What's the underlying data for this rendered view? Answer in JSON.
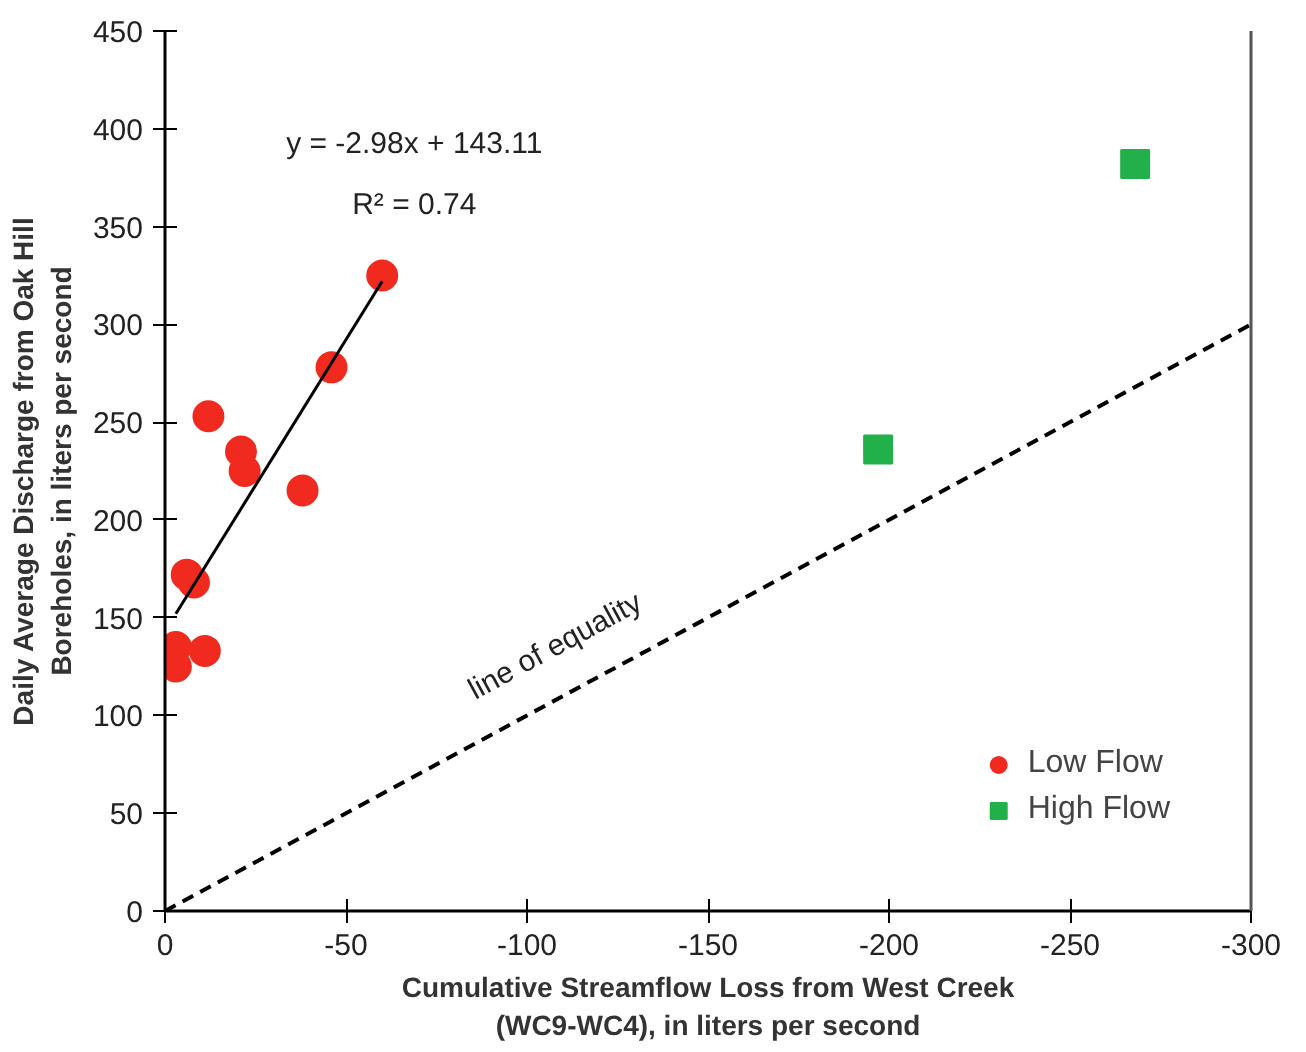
{
  "chart_data": {
    "type": "scatter",
    "xlabel": "Cumulative Streamflow Loss from West Creek\n(WC9-WC4), in liters per second",
    "ylabel": "Daily Average Discharge from Oak Hill\nBoreholes, in liters per second",
    "xlim": [
      0,
      -300
    ],
    "xticks": [
      0,
      -50,
      -100,
      -150,
      -200,
      -250,
      -300
    ],
    "ylim": [
      0,
      450
    ],
    "yticks": [
      0,
      50,
      100,
      150,
      200,
      250,
      300,
      350,
      400,
      450
    ],
    "grid": false,
    "legend": "bottom right",
    "series": [
      {
        "name": "Low Flow",
        "marker": "circle",
        "color": "#f02a1e",
        "x": [
          -60,
          -46,
          -12,
          -21,
          -22,
          -38,
          -6,
          -8,
          -3,
          -11,
          -3
        ],
        "values": [
          325,
          278,
          253,
          235,
          225,
          215,
          172,
          168,
          135,
          133,
          125
        ]
      },
      {
        "name": "High Flow",
        "marker": "square",
        "color": "#22b04b",
        "x": [
          -268,
          -197
        ],
        "values": [
          382,
          236
        ]
      },
      {
        "type": "line",
        "line_style": "solid",
        "color": "#000000",
        "x": [
          -3,
          -60
        ],
        "values": [
          152,
          322
        ]
      },
      {
        "type": "line",
        "line_style": "dashed",
        "color": "#000000",
        "x": [
          0,
          -300
        ],
        "values": [
          0,
          300
        ]
      }
    ],
    "annotations": [
      "y = -2.98x + 143.11",
      "R² = 0.74",
      "line of equality"
    ]
  }
}
